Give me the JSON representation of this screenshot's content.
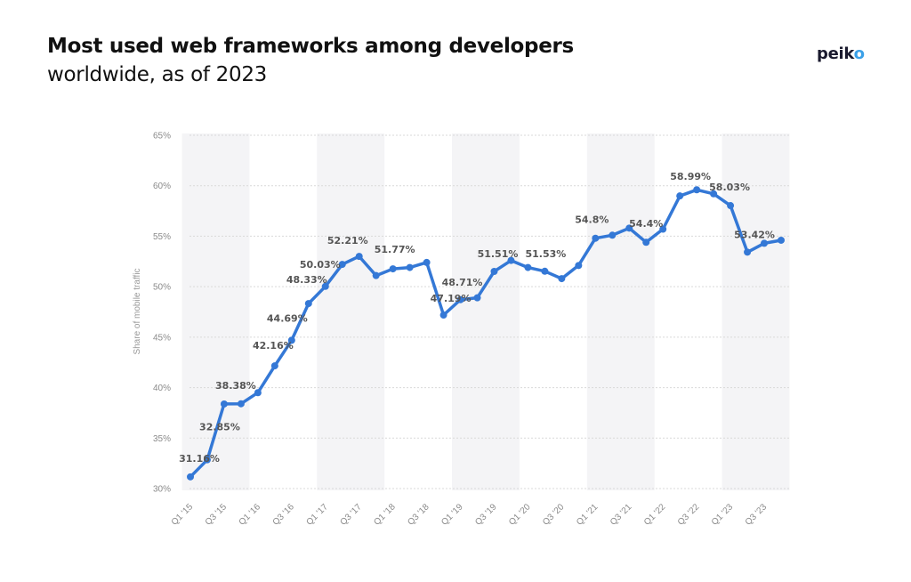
{
  "header": {
    "title": "Most used web frameworks among developers",
    "subtitle": "worldwide, as of 2023"
  },
  "brand": {
    "name_main": "peik",
    "name_accent": "o"
  },
  "colors": {
    "line": "#3478d6",
    "band": "#f4f4f6",
    "grid": "#d9d9d9",
    "text": "#111111",
    "brand_accent": "#3aa0e8"
  },
  "chart_data": {
    "type": "line",
    "title": "Most used web frameworks among developers",
    "subtitle": "worldwide, as of 2023",
    "ylabel": "Share of mobile traffic",
    "ylim": [
      30,
      65
    ],
    "yticks": [
      "30%",
      "35%",
      "40%",
      "45%",
      "50%",
      "55%",
      "60%",
      "65%"
    ],
    "grid": true,
    "x": [
      "Q1 '15",
      "Q2 '15",
      "Q3 '15",
      "Q4 '15",
      "Q1 '16",
      "Q2 '16",
      "Q3 '16",
      "Q4 '16",
      "Q1 '17",
      "Q2 '17",
      "Q3 '17",
      "Q4 '17",
      "Q1 '18",
      "Q2 '18",
      "Q3 '18",
      "Q4 '18",
      "Q1 '19",
      "Q2 '19",
      "Q3 '19",
      "Q4 '19",
      "Q1 '20",
      "Q2 '20",
      "Q3 '20",
      "Q4 '20",
      "Q1 '21",
      "Q2 '21",
      "Q3 '21",
      "Q4 '21",
      "Q1 '22",
      "Q2 '22",
      "Q3 '22",
      "Q4 '22",
      "Q1 '23",
      "Q2 '23",
      "Q3 '23",
      "Q4 '23"
    ],
    "xtick_labels": [
      "Q1 '15",
      "Q3 '15",
      "Q1 '16",
      "Q3 '16",
      "Q1 '17",
      "Q3 '17",
      "Q1 '18",
      "Q3 '18",
      "Q1 '19",
      "Q3 '19",
      "Q1 '20",
      "Q3 '20",
      "Q1 '21",
      "Q3 '21",
      "Q1 '22",
      "Q3 '22",
      "Q1 '23",
      "Q3 '23"
    ],
    "series": [
      {
        "values": [
          31.16,
          32.85,
          38.38,
          38.4,
          39.5,
          42.16,
          44.69,
          48.33,
          50.03,
          52.21,
          53.0,
          51.1,
          51.77,
          51.9,
          52.4,
          47.19,
          48.71,
          48.9,
          51.51,
          52.6,
          51.9,
          51.53,
          50.8,
          52.1,
          54.8,
          55.1,
          55.8,
          54.4,
          55.7,
          58.99,
          59.6,
          59.2,
          58.03,
          53.42,
          54.3,
          54.6
        ],
        "labels": [
          "31.16%",
          "32.85%",
          "38.38%",
          "",
          "",
          "42.16%",
          "44.69%",
          "48.33%",
          "50.03%",
          "52.21%",
          "",
          "",
          "51.77%",
          "",
          "",
          "47.19%",
          "48.71%",
          "",
          "51.51%",
          "",
          "",
          "51.53%",
          "",
          "",
          "54.8%",
          "",
          "",
          "54.4%",
          "",
          "58.99%",
          "",
          "",
          "58.03%",
          "53.42%",
          "",
          ""
        ]
      }
    ]
  }
}
